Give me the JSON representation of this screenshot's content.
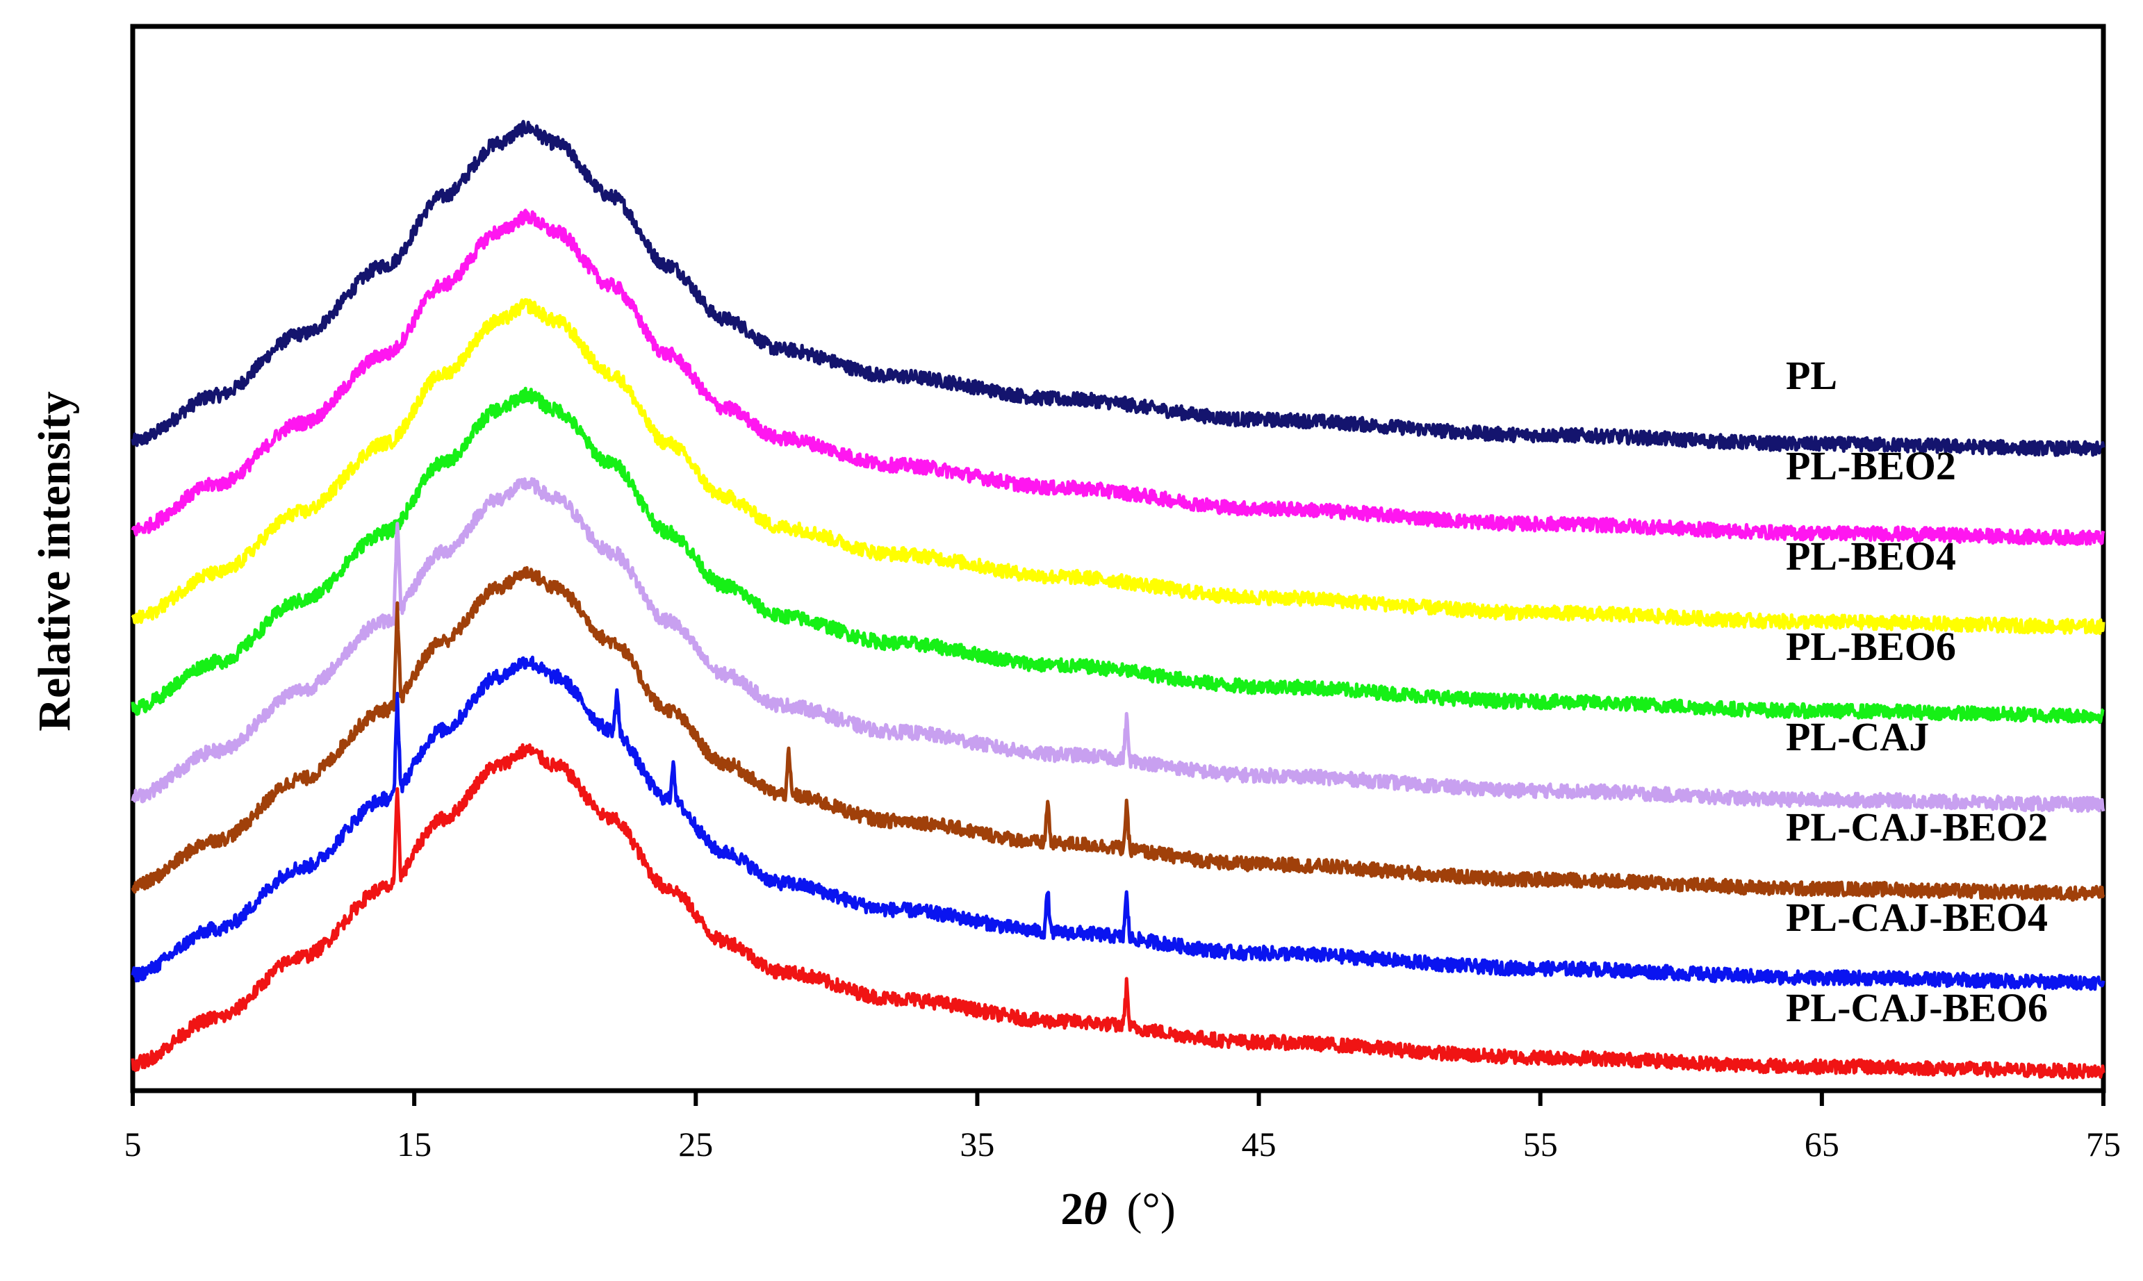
{
  "chart_data": {
    "type": "line",
    "title": "",
    "xlabel": {
      "main": "2",
      "symbol": "θ",
      "unit": "(°)"
    },
    "ylabel": "Relative intensity",
    "xlim": [
      5,
      75
    ],
    "xticks": [
      "5",
      "15",
      "25",
      "35",
      "45",
      "55",
      "65",
      "75"
    ],
    "y_tick_labels": false,
    "grid": false,
    "legend": "labels at right end of each curve",
    "note": "",
    "series": [
      {
        "name": "PL",
        "color": "#14146e",
        "offset": 7.0,
        "points": [
          [
            5,
            0.1
          ],
          [
            8,
            0.7
          ],
          [
            11,
            1.5
          ],
          [
            14,
            2.4
          ],
          [
            16,
            3.3
          ],
          [
            18,
            4.0
          ],
          [
            19,
            4.2
          ],
          [
            20,
            4.0
          ],
          [
            22,
            3.3
          ],
          [
            24,
            2.4
          ],
          [
            26,
            1.7
          ],
          [
            28,
            1.3
          ],
          [
            32,
            0.95
          ],
          [
            38,
            0.65
          ],
          [
            45,
            0.38
          ],
          [
            55,
            0.18
          ],
          [
            65,
            0.06
          ],
          [
            75,
            0.0
          ]
        ]
      },
      {
        "name": "PL-BEO2",
        "color": "#ff16f0",
        "offset": 6.0,
        "points": [
          [
            5,
            0.1
          ],
          [
            8,
            0.7
          ],
          [
            11,
            1.5
          ],
          [
            14,
            2.4
          ],
          [
            16,
            3.3
          ],
          [
            18,
            4.0
          ],
          [
            19,
            4.2
          ],
          [
            20,
            4.0
          ],
          [
            22,
            3.3
          ],
          [
            24,
            2.4
          ],
          [
            26,
            1.7
          ],
          [
            28,
            1.3
          ],
          [
            32,
            0.95
          ],
          [
            38,
            0.65
          ],
          [
            45,
            0.38
          ],
          [
            55,
            0.18
          ],
          [
            65,
            0.06
          ],
          [
            75,
            0.0
          ]
        ]
      },
      {
        "name": "PL-BEO4",
        "color": "#ffff00",
        "offset": 5.0,
        "points": [
          [
            5,
            0.1
          ],
          [
            8,
            0.7
          ],
          [
            11,
            1.5
          ],
          [
            14,
            2.4
          ],
          [
            16,
            3.3
          ],
          [
            18,
            4.0
          ],
          [
            19,
            4.2
          ],
          [
            20,
            4.0
          ],
          [
            22,
            3.3
          ],
          [
            24,
            2.4
          ],
          [
            26,
            1.7
          ],
          [
            28,
            1.3
          ],
          [
            32,
            0.95
          ],
          [
            38,
            0.65
          ],
          [
            45,
            0.38
          ],
          [
            55,
            0.18
          ],
          [
            65,
            0.06
          ],
          [
            75,
            0.0
          ]
        ]
      },
      {
        "name": "PL-BEO6",
        "color": "#16f016",
        "offset": 4.0,
        "points": [
          [
            5,
            0.1
          ],
          [
            8,
            0.7
          ],
          [
            11,
            1.5
          ],
          [
            14,
            2.4
          ],
          [
            16,
            3.3
          ],
          [
            18,
            4.0
          ],
          [
            19,
            4.2
          ],
          [
            20,
            4.0
          ],
          [
            22,
            3.3
          ],
          [
            24,
            2.4
          ],
          [
            26,
            1.7
          ],
          [
            28,
            1.3
          ],
          [
            32,
            0.95
          ],
          [
            38,
            0.65
          ],
          [
            45,
            0.38
          ],
          [
            55,
            0.18
          ],
          [
            65,
            0.06
          ],
          [
            75,
            0.0
          ]
        ]
      },
      {
        "name": "PL-CAJ",
        "color": "#c8a0f0",
        "offset": 3.0,
        "points": [
          [
            5,
            0.1
          ],
          [
            8,
            0.7
          ],
          [
            11,
            1.5
          ],
          [
            14,
            2.4
          ],
          [
            16,
            3.3
          ],
          [
            18,
            4.0
          ],
          [
            19,
            4.2
          ],
          [
            20,
            4.0
          ],
          [
            22,
            3.3
          ],
          [
            24,
            2.4
          ],
          [
            26,
            1.7
          ],
          [
            28,
            1.3
          ],
          [
            32,
            0.95
          ],
          [
            38,
            0.65
          ],
          [
            45,
            0.38
          ],
          [
            55,
            0.18
          ],
          [
            65,
            0.06
          ],
          [
            75,
            0.0
          ]
        ]
      },
      {
        "name": "PL-CAJ-BEO2",
        "color": "#a0400a",
        "offset": 2.0,
        "points": [
          [
            5,
            0.1
          ],
          [
            8,
            0.7
          ],
          [
            11,
            1.5
          ],
          [
            14,
            2.4
          ],
          [
            16,
            3.3
          ],
          [
            18,
            4.0
          ],
          [
            19,
            4.2
          ],
          [
            20,
            4.0
          ],
          [
            22,
            3.3
          ],
          [
            24,
            2.4
          ],
          [
            26,
            1.7
          ],
          [
            28,
            1.3
          ],
          [
            32,
            0.95
          ],
          [
            38,
            0.65
          ],
          [
            45,
            0.38
          ],
          [
            55,
            0.18
          ],
          [
            65,
            0.06
          ],
          [
            75,
            0.0
          ]
        ]
      },
      {
        "name": "PL-CAJ-BEO4",
        "color": "#0a14f0",
        "offset": 1.0,
        "points": [
          [
            5,
            0.1
          ],
          [
            8,
            0.7
          ],
          [
            11,
            1.5
          ],
          [
            14,
            2.4
          ],
          [
            16,
            3.3
          ],
          [
            18,
            4.0
          ],
          [
            19,
            4.2
          ],
          [
            20,
            4.0
          ],
          [
            22,
            3.3
          ],
          [
            24,
            2.4
          ],
          [
            26,
            1.7
          ],
          [
            28,
            1.3
          ],
          [
            32,
            0.95
          ],
          [
            38,
            0.65
          ],
          [
            45,
            0.38
          ],
          [
            55,
            0.18
          ],
          [
            65,
            0.06
          ],
          [
            75,
            0.0
          ]
        ]
      },
      {
        "name": "PL-CAJ-BEO6",
        "color": "#f01414",
        "offset": 0.0,
        "points": [
          [
            5,
            0.1
          ],
          [
            8,
            0.7
          ],
          [
            11,
            1.5
          ],
          [
            14,
            2.4
          ],
          [
            16,
            3.3
          ],
          [
            18,
            4.0
          ],
          [
            19,
            4.2
          ],
          [
            20,
            4.0
          ],
          [
            22,
            3.3
          ],
          [
            24,
            2.4
          ],
          [
            26,
            1.7
          ],
          [
            28,
            1.3
          ],
          [
            32,
            0.95
          ],
          [
            38,
            0.65
          ],
          [
            45,
            0.38
          ],
          [
            55,
            0.18
          ],
          [
            65,
            0.06
          ],
          [
            75,
            0.0
          ]
        ]
      }
    ],
    "sharp_peaks": [
      {
        "series": "PL-CAJ",
        "x": [
          14.4,
          40.3
        ]
      },
      {
        "series": "PL-CAJ-BEO2",
        "x": [
          14.4,
          28.3,
          37.5,
          40.3
        ]
      },
      {
        "series": "PL-CAJ-BEO4",
        "x": [
          14.4,
          22.2,
          24.2,
          37.5,
          40.3
        ]
      },
      {
        "series": "PL-CAJ-BEO6",
        "x": [
          14.4,
          40.3
        ]
      }
    ]
  }
}
